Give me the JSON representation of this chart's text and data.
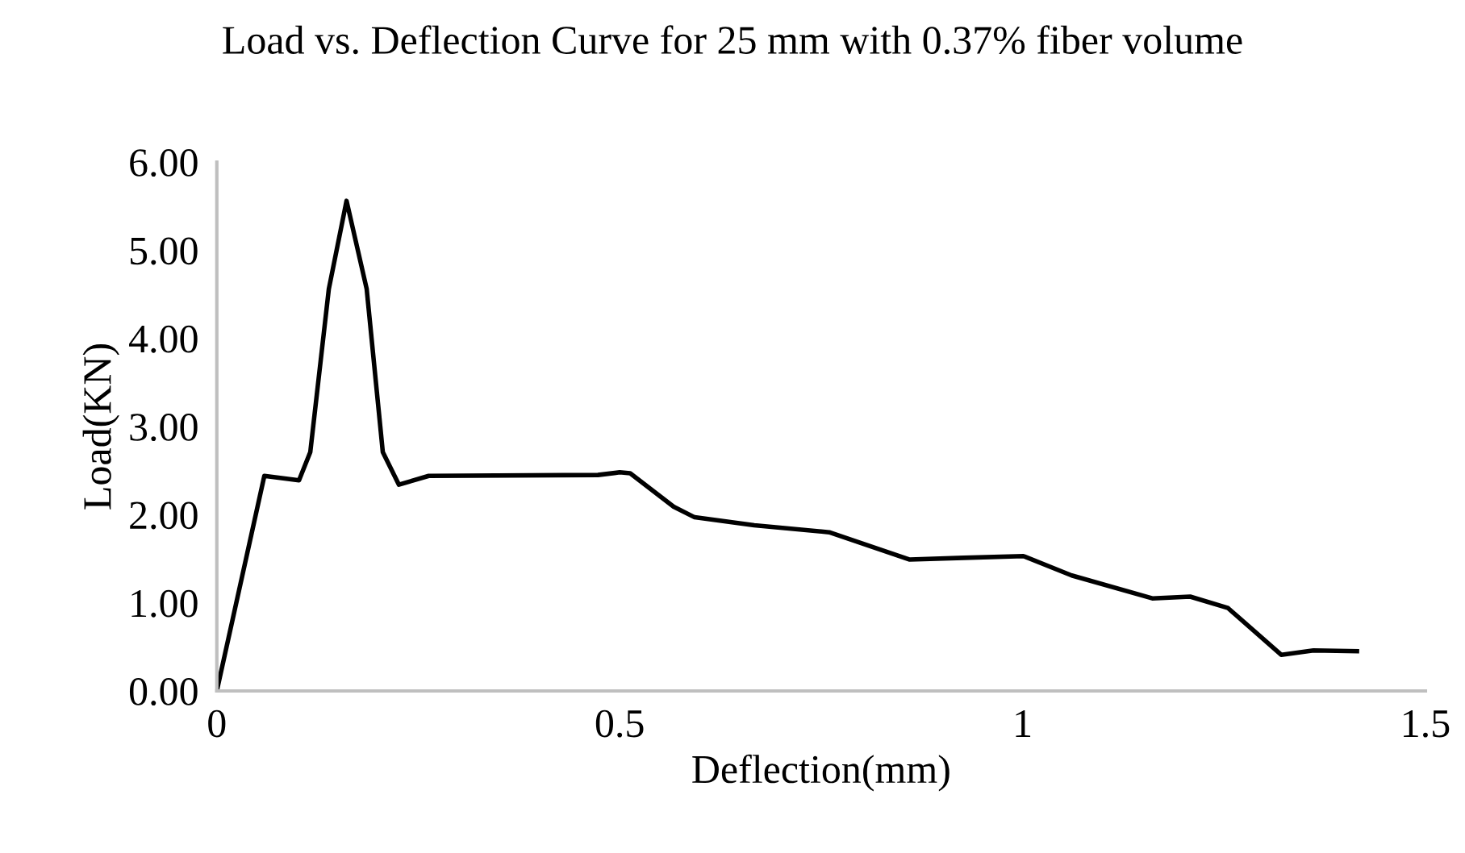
{
  "chart_data": {
    "type": "line",
    "title": "Load vs. Deflection Curve for 25 mm with 0.37% fiber volume",
    "xlabel": "Deflection(mm)",
    "ylabel": "Load(KN)",
    "xlim": [
      0,
      1.5
    ],
    "xticks": [
      0,
      0.5,
      1,
      1.5
    ],
    "ylim": [
      0,
      6
    ],
    "yticks": [
      {
        "value": 0,
        "label": "0.00"
      },
      {
        "value": 1,
        "label": "1.00"
      },
      {
        "value": 2,
        "label": "2.00"
      },
      {
        "value": 3,
        "label": "3.00"
      },
      {
        "value": 4,
        "label": "4.00"
      },
      {
        "value": 5,
        "label": "5.00"
      },
      {
        "value": 6,
        "label": "6.00"
      }
    ],
    "grid": false,
    "legend": false,
    "marker": "none",
    "line_style": "solid",
    "series": [
      {
        "color": "#000000",
        "x": [
          0,
          0.059,
          0.102,
          0.116,
          0.139,
          0.161,
          0.186,
          0.206,
          0.226,
          0.263,
          0.473,
          0.5,
          0.513,
          0.567,
          0.593,
          0.667,
          0.76,
          0.86,
          0.927,
          1.001,
          1.061,
          1.161,
          1.208,
          1.255,
          1.321,
          1.361,
          1.415
        ],
        "values": [
          0,
          2.44,
          2.39,
          2.71,
          4.56,
          5.56,
          4.56,
          2.71,
          2.34,
          2.44,
          2.45,
          2.48,
          2.47,
          2.09,
          1.97,
          1.88,
          1.8,
          1.49,
          1.51,
          1.53,
          1.31,
          1.05,
          1.07,
          0.94,
          0.41,
          0.46,
          0.45
        ]
      }
    ]
  }
}
